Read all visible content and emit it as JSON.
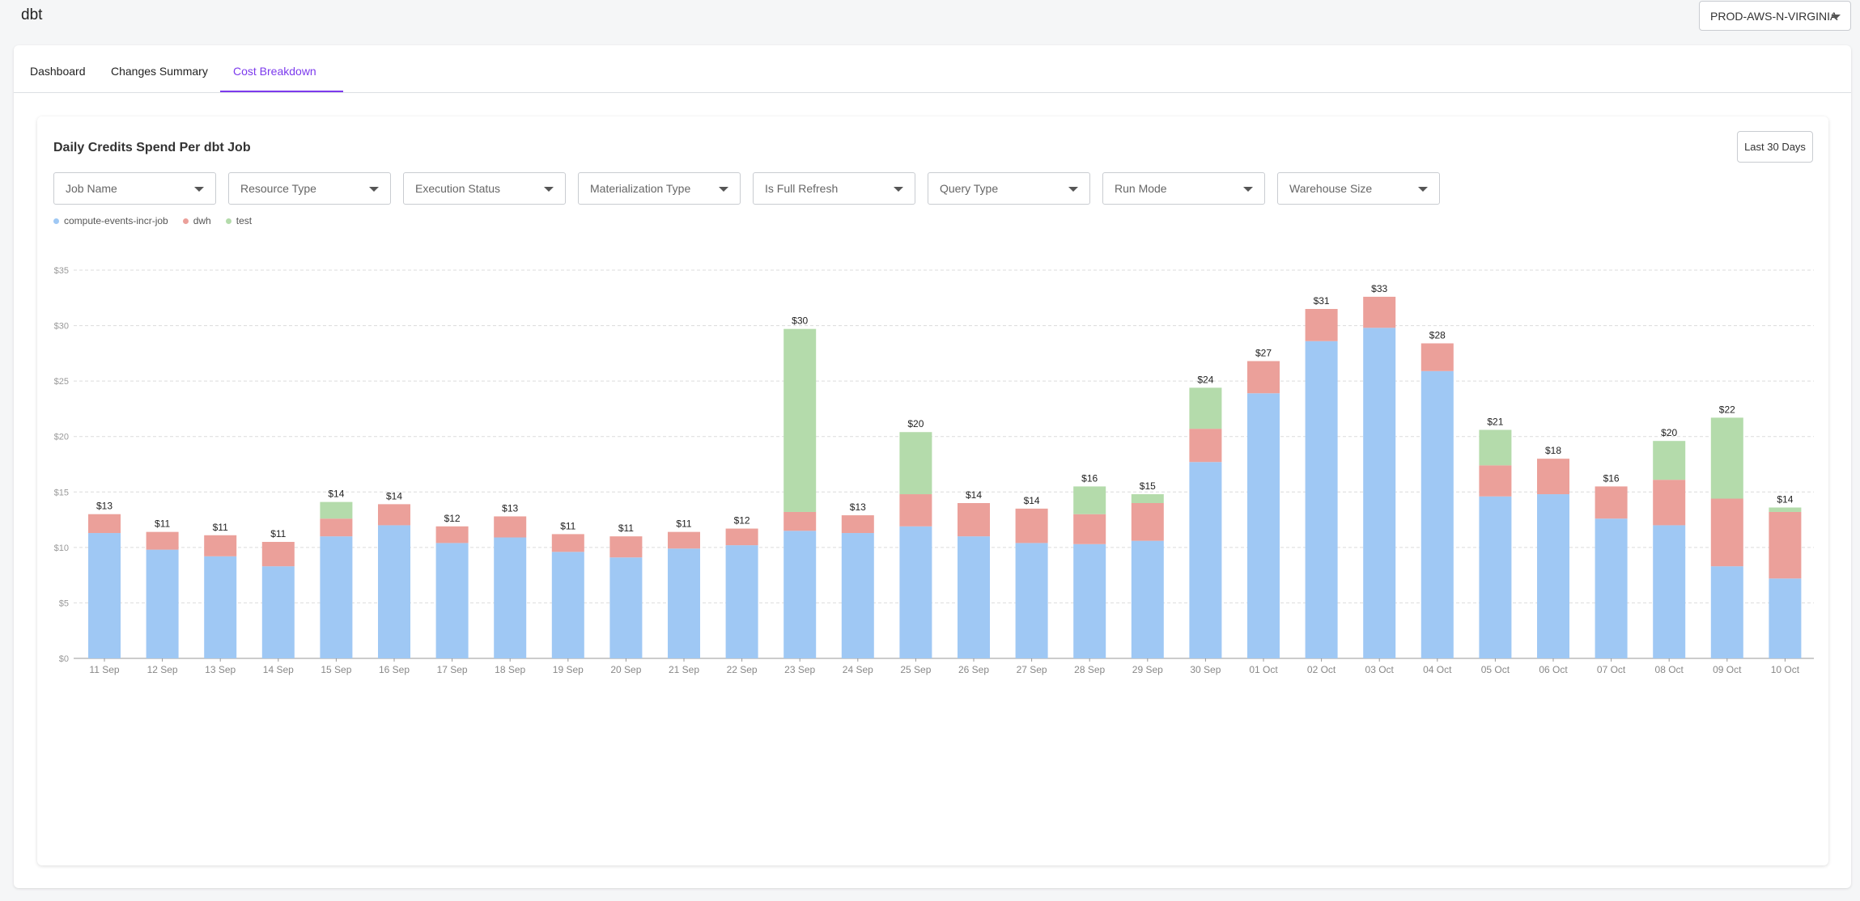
{
  "app": {
    "title": "dbt"
  },
  "env_select": {
    "value": "PROD-AWS-N-VIRGINIA"
  },
  "tabs": [
    {
      "label": "Dashboard",
      "active": false
    },
    {
      "label": "Changes Summary",
      "active": false
    },
    {
      "label": "Cost Breakdown",
      "active": true
    }
  ],
  "colors": {
    "accent": "#7c3aed",
    "compute": "#9fc8f4",
    "dwh": "#eba09a",
    "test": "#b4dbab"
  },
  "card": {
    "title": "Daily Credits Spend Per dbt Job",
    "range_button": "Last 30 Days",
    "filters": [
      "Job Name",
      "Resource Type",
      "Execution Status",
      "Materialization Type",
      "Is Full Refresh",
      "Query Type",
      "Run Mode",
      "Warehouse Size"
    ]
  },
  "chart_data": {
    "type": "bar",
    "stacked": true,
    "categories": [
      "11 Sep",
      "12 Sep",
      "13 Sep",
      "14 Sep",
      "15 Sep",
      "16 Sep",
      "17 Sep",
      "18 Sep",
      "19 Sep",
      "20 Sep",
      "21 Sep",
      "22 Sep",
      "23 Sep",
      "24 Sep",
      "25 Sep",
      "26 Sep",
      "27 Sep",
      "28 Sep",
      "29 Sep",
      "30 Sep",
      "01 Oct",
      "02 Oct",
      "03 Oct",
      "04 Oct",
      "05 Oct",
      "06 Oct",
      "07 Oct",
      "08 Oct",
      "09 Oct",
      "10 Oct"
    ],
    "series": [
      {
        "name": "compute-events-incr-job",
        "color": "#9fc8f4",
        "values": [
          11.3,
          9.8,
          9.2,
          8.3,
          11.0,
          12.0,
          10.4,
          10.9,
          9.6,
          9.1,
          9.9,
          10.2,
          11.5,
          11.3,
          11.9,
          11.0,
          10.4,
          10.3,
          10.6,
          17.7,
          23.9,
          28.6,
          29.8,
          25.9,
          14.6,
          14.8,
          12.6,
          12.0,
          8.3,
          7.2
        ]
      },
      {
        "name": "dwh",
        "color": "#eba09a",
        "values": [
          1.7,
          1.6,
          1.9,
          2.2,
          1.6,
          1.9,
          1.5,
          1.9,
          1.6,
          1.9,
          1.5,
          1.5,
          1.7,
          1.6,
          2.9,
          3.0,
          3.1,
          2.7,
          3.4,
          3.0,
          2.9,
          2.9,
          2.8,
          2.5,
          2.8,
          3.2,
          2.9,
          4.1,
          6.1,
          6.0
        ]
      },
      {
        "name": "test",
        "color": "#b4dbab",
        "values": [
          0,
          0,
          0,
          0,
          1.5,
          0,
          0,
          0,
          0,
          0,
          0,
          0,
          16.5,
          0,
          5.6,
          0,
          0,
          2.5,
          0.8,
          3.7,
          0,
          0,
          0,
          0,
          3.2,
          0,
          0,
          3.5,
          7.3,
          0.4
        ]
      }
    ],
    "totals_labels": [
      "$13",
      "$11",
      "$11",
      "$11",
      "$14",
      "$14",
      "$12",
      "$13",
      "$11",
      "$11",
      "$11",
      "$12",
      "$30",
      "$13",
      "$20",
      "$14",
      "$14",
      "$16",
      "$15",
      "$24",
      "$27",
      "$31",
      "$33",
      "$28",
      "$21",
      "$18",
      "$16",
      "$20",
      "$22",
      "$14"
    ],
    "y_ticks": [
      "$0",
      "$5",
      "$10",
      "$15",
      "$20",
      "$25",
      "$30",
      "$35"
    ],
    "ylim": [
      0,
      35
    ],
    "grid": true,
    "legend_position": "top-left"
  }
}
